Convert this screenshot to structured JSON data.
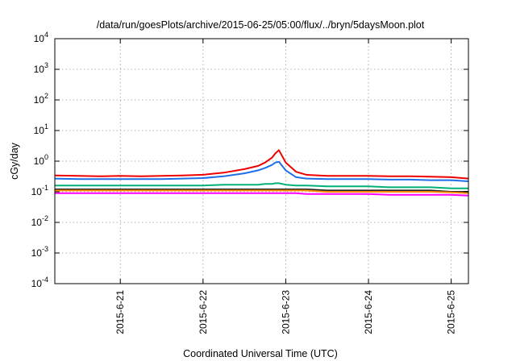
{
  "chart_data": {
    "type": "line",
    "title": "/data/run/goesPlots/archive/2015-06-25/05:00/flux/../bryn/5daysMoon.plot",
    "xlabel": "Coordinated Universal Time (UTC)",
    "ylabel": "cGy/day",
    "yscale": "log",
    "ylim": [
      0.0001,
      10000
    ],
    "y_ticks": [
      {
        "value": 0.0001,
        "base": "10",
        "exp": "-4"
      },
      {
        "value": 0.001,
        "base": "10",
        "exp": "-3"
      },
      {
        "value": 0.01,
        "base": "10",
        "exp": "-2"
      },
      {
        "value": 0.1,
        "base": "10",
        "exp": "-1"
      },
      {
        "value": 1,
        "base": "10",
        "exp": "0"
      },
      {
        "value": 10,
        "base": "10",
        "exp": "1"
      },
      {
        "value": 100,
        "base": "10",
        "exp": "2"
      },
      {
        "value": 1000,
        "base": "10",
        "exp": "3"
      },
      {
        "value": 10000,
        "base": "10",
        "exp": "4"
      }
    ],
    "xlim": [
      "2015-06-20 05:00",
      "2015-06-25 05:00"
    ],
    "x_ticks": [
      "2015-6-21",
      "2015-6-22",
      "2015-6-23",
      "2015-6-24",
      "2015-6-25"
    ],
    "grid": true,
    "x": [
      "2015-06-20 05:00",
      "2015-06-20 12:00",
      "2015-06-20 18:00",
      "2015-06-21 00:00",
      "2015-06-21 06:00",
      "2015-06-21 12:00",
      "2015-06-21 18:00",
      "2015-06-22 00:00",
      "2015-06-22 06:00",
      "2015-06-22 12:00",
      "2015-06-22 16:00",
      "2015-06-22 18:00",
      "2015-06-22 20:00",
      "2015-06-22 21:00",
      "2015-06-22 22:00",
      "2015-06-23 00:00",
      "2015-06-23 03:00",
      "2015-06-23 06:00",
      "2015-06-23 12:00",
      "2015-06-23 18:00",
      "2015-06-24 00:00",
      "2015-06-24 06:00",
      "2015-06-24 12:00",
      "2015-06-24 18:00",
      "2015-06-25 00:00",
      "2015-06-25 05:00"
    ],
    "series": [
      {
        "color": "#ee0000",
        "values": [
          0.34,
          0.33,
          0.32,
          0.33,
          0.32,
          0.33,
          0.34,
          0.36,
          0.42,
          0.55,
          0.7,
          0.9,
          1.3,
          1.8,
          2.3,
          0.9,
          0.45,
          0.36,
          0.33,
          0.33,
          0.33,
          0.32,
          0.32,
          0.31,
          0.3,
          0.27
        ]
      },
      {
        "color": "#1f6fe8",
        "values": [
          0.27,
          0.26,
          0.26,
          0.26,
          0.26,
          0.26,
          0.27,
          0.28,
          0.32,
          0.4,
          0.5,
          0.6,
          0.75,
          0.9,
          0.95,
          0.5,
          0.3,
          0.27,
          0.26,
          0.26,
          0.26,
          0.25,
          0.25,
          0.24,
          0.24,
          0.22
        ]
      },
      {
        "color": "#00b07a",
        "values": [
          0.16,
          0.16,
          0.16,
          0.16,
          0.16,
          0.16,
          0.16,
          0.16,
          0.17,
          0.17,
          0.17,
          0.18,
          0.18,
          0.19,
          0.19,
          0.17,
          0.16,
          0.16,
          0.15,
          0.15,
          0.15,
          0.14,
          0.14,
          0.14,
          0.13,
          0.13
        ]
      },
      {
        "color": "#222222",
        "values": [
          0.12,
          0.12,
          0.12,
          0.12,
          0.12,
          0.12,
          0.12,
          0.12,
          0.12,
          0.12,
          0.12,
          0.12,
          0.12,
          0.12,
          0.12,
          0.12,
          0.12,
          0.12,
          0.11,
          0.11,
          0.11,
          0.11,
          0.11,
          0.11,
          0.1,
          0.1
        ]
      },
      {
        "color": "#ff8c00",
        "values": [
          0.11,
          0.11,
          0.11,
          0.11,
          0.11,
          0.11,
          0.11,
          0.11,
          0.11,
          0.11,
          0.11,
          0.11,
          0.11,
          0.11,
          0.11,
          0.11,
          0.11,
          0.11,
          0.1,
          0.1,
          0.1,
          0.1,
          0.1,
          0.1,
          0.095,
          0.09
        ]
      },
      {
        "color": "#ff00ff",
        "values": [
          0.09,
          0.09,
          0.09,
          0.09,
          0.09,
          0.09,
          0.09,
          0.09,
          0.09,
          0.09,
          0.09,
          0.09,
          0.09,
          0.09,
          0.09,
          0.09,
          0.09,
          0.085,
          0.085,
          0.085,
          0.085,
          0.08,
          0.08,
          0.08,
          0.08,
          0.075
        ]
      }
    ]
  }
}
